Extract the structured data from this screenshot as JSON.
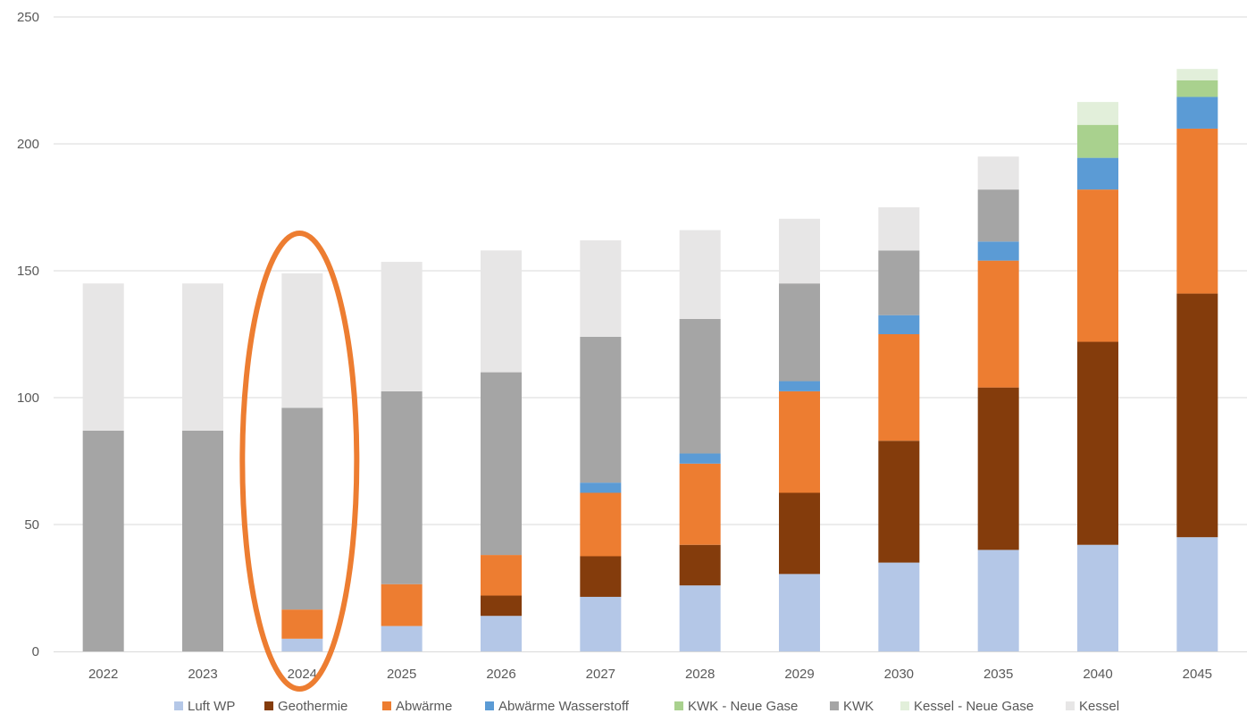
{
  "chart_data": {
    "type": "bar",
    "stacked": true,
    "title": "",
    "xlabel": "",
    "ylabel": "",
    "ylim": [
      0,
      250
    ],
    "yticks": [
      0,
      50,
      100,
      150,
      200,
      250
    ],
    "grid": true,
    "legend_position": "bottom",
    "categories": [
      "2022",
      "2023",
      "2024",
      "2025",
      "2026",
      "2027",
      "2028",
      "2029",
      "2030",
      "2035",
      "2040",
      "2045"
    ],
    "series": [
      {
        "name": "Luft WP",
        "color": "#b4c7e7",
        "values": [
          0,
          0,
          5,
          10,
          14,
          21.5,
          26,
          30.5,
          35,
          40,
          42,
          45
        ]
      },
      {
        "name": "Geothermie",
        "color": "#843c0c",
        "values": [
          0,
          0,
          0,
          0,
          8,
          16,
          16,
          32,
          48,
          64,
          80,
          96
        ]
      },
      {
        "name": "Abwärme",
        "color": "#ed7d31",
        "values": [
          0,
          0,
          11.5,
          16.5,
          16,
          25,
          32,
          40,
          42,
          50,
          60,
          65
        ]
      },
      {
        "name": "Abwärme Wasserstoff",
        "color": "#5b9bd5",
        "values": [
          0,
          0,
          0,
          0,
          0,
          4,
          4,
          4,
          7.5,
          7.5,
          12.5,
          12.5
        ]
      },
      {
        "name": "KWK - Neue Gase",
        "color": "#a9d18e",
        "values": [
          0,
          0,
          0,
          0,
          0,
          0,
          0,
          0,
          0,
          0,
          13,
          6.5
        ]
      },
      {
        "name": "KWK",
        "color": "#a5a5a5",
        "values": [
          87,
          87,
          79.5,
          76,
          72,
          57.5,
          53,
          38.5,
          25.5,
          20.5,
          0,
          0
        ]
      },
      {
        "name": "Kessel - Neue Gase",
        "color": "#e2efda",
        "values": [
          0,
          0,
          0,
          0,
          0,
          0,
          0,
          0,
          0,
          0,
          9,
          4.5
        ]
      },
      {
        "name": "Kessel",
        "color": "#e7e6e6",
        "values": [
          58,
          58,
          53,
          51,
          48,
          38,
          35,
          25.5,
          17,
          13,
          0,
          0
        ]
      }
    ],
    "annotation": {
      "type": "ellipse",
      "target_category": "2024",
      "color": "#ed7d31"
    }
  }
}
